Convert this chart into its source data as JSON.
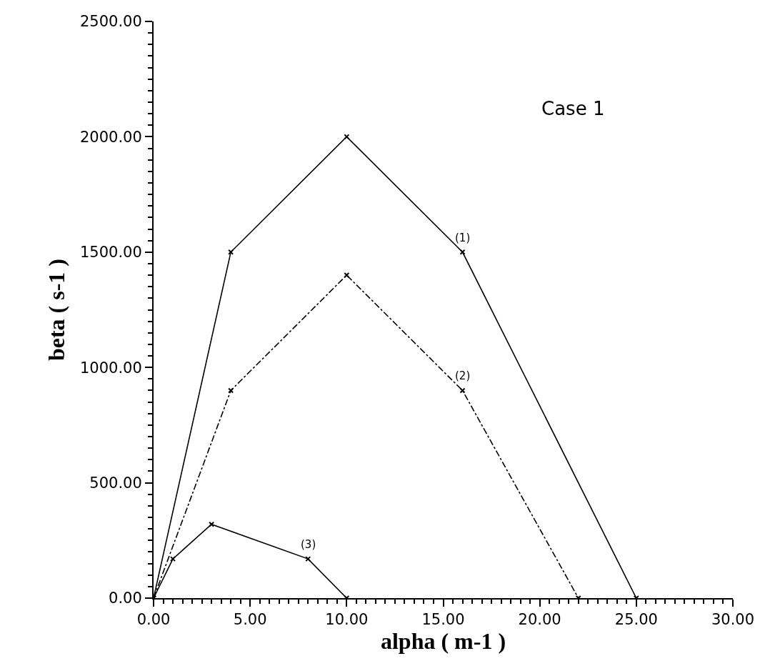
{
  "chart_data": {
    "type": "line",
    "xlabel": "alpha ( m-1 )",
    "ylabel": "beta ( s-1 )",
    "annotations": [
      "Case 1"
    ],
    "series": [
      {
        "name": "(1)",
        "color": "#000000",
        "line_style": "solid",
        "x": [
          0,
          4,
          10,
          16,
          25
        ],
        "values": [
          0,
          1500,
          2000,
          1500,
          0
        ]
      },
      {
        "name": "(2)",
        "color": "#000000",
        "line_style": "dashed",
        "x": [
          0,
          4,
          10,
          16,
          22
        ],
        "values": [
          0,
          900,
          1400,
          900,
          0
        ]
      },
      {
        "name": "(3)",
        "color": "#000000",
        "line_style": "solid",
        "x": [
          0,
          1,
          3,
          8,
          10
        ],
        "values": [
          0,
          170,
          320,
          170,
          0
        ]
      }
    ],
    "marker": "cross",
    "grid": false,
    "legend": false,
    "xlim": [
      0,
      30
    ],
    "xticks": [
      {
        "value": 0,
        "label": "0.00"
      },
      {
        "value": 5,
        "label": "5.00"
      },
      {
        "value": 10,
        "label": "10.00"
      },
      {
        "value": 15,
        "label": "15.00"
      },
      {
        "value": 20,
        "label": "20.00"
      },
      {
        "value": 25,
        "label": "25.00"
      },
      {
        "value": 30,
        "label": "30.00"
      }
    ],
    "ylim": [
      0,
      2500
    ],
    "yticks": [
      {
        "value": 0,
        "label": "0.00"
      },
      {
        "value": 500,
        "label": "500.00"
      },
      {
        "value": 1000,
        "label": "1000.00"
      },
      {
        "value": 1500,
        "label": "1500.00"
      },
      {
        "value": 2000,
        "label": "2000.00"
      },
      {
        "value": 2500,
        "label": "2500.00"
      }
    ]
  }
}
